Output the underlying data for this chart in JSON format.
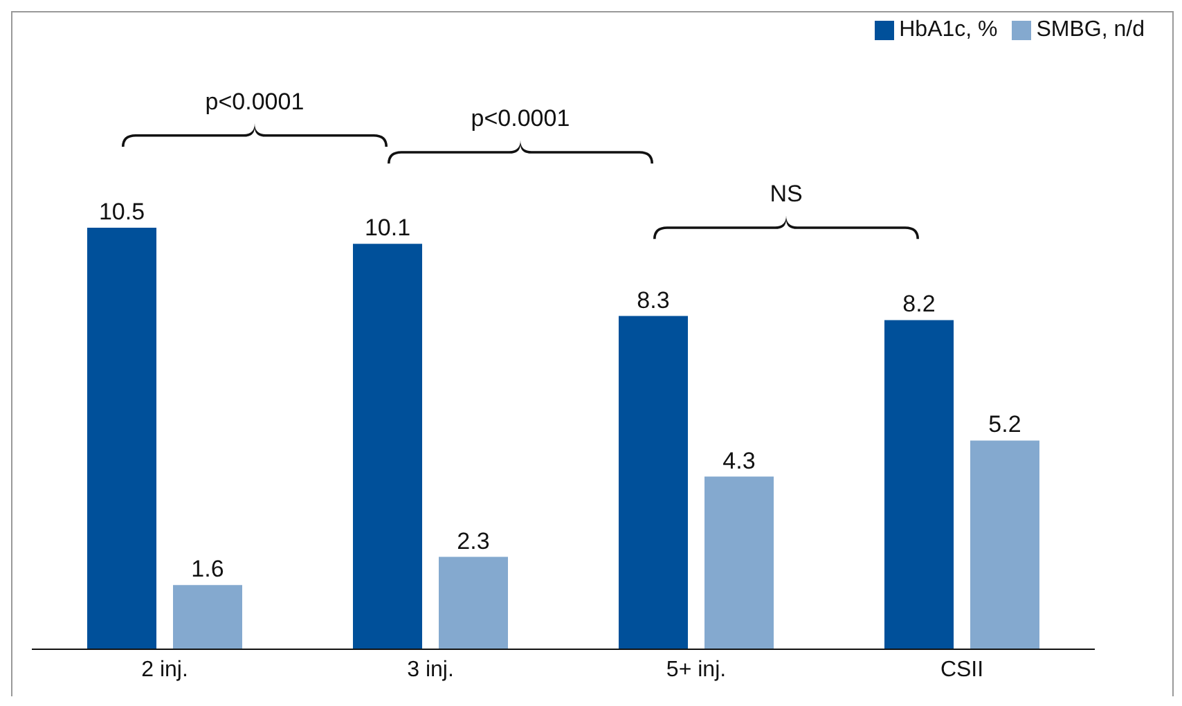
{
  "chart_data": {
    "type": "bar",
    "categories": [
      "2 inj.",
      "3 inj.",
      "5+ inj.",
      "CSII"
    ],
    "series": [
      {
        "name": "HbA1c, %",
        "color": "#00509a",
        "values": [
          10.5,
          10.1,
          8.3,
          8.2
        ]
      },
      {
        "name": "SMBG, n/d",
        "color": "#84a9cf",
        "values": [
          1.6,
          2.3,
          4.3,
          5.2
        ]
      }
    ],
    "data_labels": true,
    "legend": "top right",
    "grid": false,
    "annotations": [
      "p<0.0001",
      "p<0.0001",
      "NS"
    ]
  }
}
